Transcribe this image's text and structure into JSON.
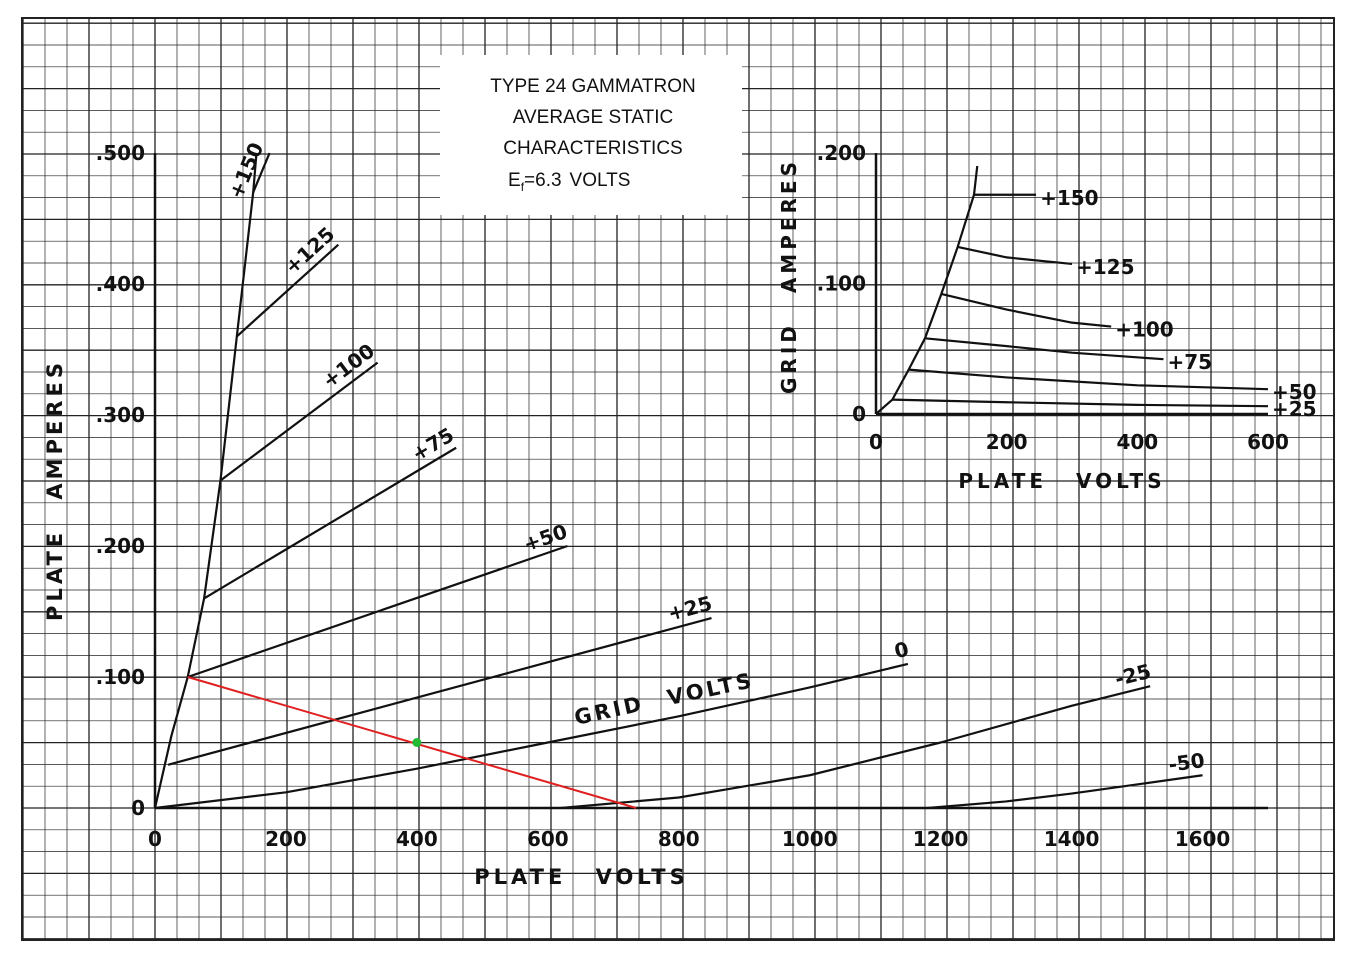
{
  "title": {
    "lines": [
      "TYPE 24 GAMMATRON",
      "AVERAGE STATIC",
      "CHARACTERISTICS",
      "VOLTS"
    ],
    "ef_symbol": "E",
    "ef_subscript": "f",
    "ef_value": "=6.3"
  },
  "colors": {
    "ink": "#111111",
    "grid": "#222222",
    "load_line": "#e02020",
    "operating_point": "#22bb33"
  },
  "chart_data": [
    {
      "type": "line",
      "xlabel": "PLATE VOLTS",
      "ylabel": "PLATE AMPERES",
      "xlim": [
        0,
        1700
      ],
      "ylim": [
        0,
        0.5
      ],
      "x_ticks": [
        0,
        200,
        400,
        600,
        800,
        1000,
        1200,
        1400,
        1600
      ],
      "x_tick_labels": [
        "0",
        "200",
        "400",
        "600",
        "800",
        "1000",
        "1200",
        "1400",
        "1600"
      ],
      "y_ticks": [
        0,
        0.1,
        0.2,
        0.3,
        0.4,
        0.5
      ],
      "y_tick_labels": [
        "0",
        ".100",
        ".200",
        ".300",
        ".400",
        ".500"
      ],
      "grid": true,
      "curve_family_label": "GRID VOLTS",
      "series": [
        {
          "name": "+150",
          "x": [
            150,
            175
          ],
          "y": [
            0.47,
            0.5
          ]
        },
        {
          "name": "+125",
          "x": [
            125,
            280
          ],
          "y": [
            0.36,
            0.43
          ]
        },
        {
          "name": "+100",
          "x": [
            100,
            340
          ],
          "y": [
            0.25,
            0.34
          ]
        },
        {
          "name": "+75",
          "x": [
            75,
            460
          ],
          "y": [
            0.16,
            0.275
          ]
        },
        {
          "name": "+50",
          "x": [
            50,
            630
          ],
          "y": [
            0.1,
            0.2
          ]
        },
        {
          "name": "+25",
          "x": [
            20,
            850
          ],
          "y": [
            0.033,
            0.145
          ]
        },
        {
          "name": "0",
          "x": [
            0,
            200,
            400,
            600,
            800,
            1000,
            1150
          ],
          "y": [
            0,
            0.012,
            0.03,
            0.05,
            0.07,
            0.092,
            0.11
          ]
        },
        {
          "name": "-25",
          "x": [
            620,
            800,
            1000,
            1200,
            1400,
            1520
          ],
          "y": [
            0,
            0.008,
            0.025,
            0.05,
            0.078,
            0.093
          ]
        },
        {
          "name": "-50",
          "x": [
            1180,
            1300,
            1400,
            1500,
            1600
          ],
          "y": [
            0,
            0.005,
            0.011,
            0.018,
            0.025
          ]
        }
      ],
      "envelope": {
        "x": [
          0,
          25,
          50,
          75,
          100,
          125,
          150,
          155
        ],
        "y": [
          0,
          0.055,
          0.1,
          0.16,
          0.25,
          0.36,
          0.47,
          0.5
        ]
      },
      "load_line": {
        "x": [
          50,
          735
        ],
        "y": [
          0.1,
          0.0
        ]
      },
      "operating_point": {
        "x": 400,
        "y": 0.05
      }
    },
    {
      "type": "line",
      "xlabel": "PLATE VOLTS",
      "ylabel": "GRID AMPERES",
      "xlim": [
        0,
        600
      ],
      "ylim": [
        0,
        0.2
      ],
      "x_ticks": [
        0,
        200,
        400,
        600
      ],
      "x_tick_labels": [
        "0",
        "200",
        "400",
        "600"
      ],
      "y_ticks": [
        0,
        0.1,
        0.2
      ],
      "y_tick_labels": [
        "0",
        ".100",
        ".200"
      ],
      "grid": true,
      "series": [
        {
          "name": "+150",
          "x": [
            150,
            245
          ],
          "y": [
            0.168,
            0.168
          ]
        },
        {
          "name": "+125",
          "x": [
            125,
            200,
            300
          ],
          "y": [
            0.128,
            0.12,
            0.115
          ]
        },
        {
          "name": "+100",
          "x": [
            100,
            200,
            300,
            360
          ],
          "y": [
            0.092,
            0.08,
            0.07,
            0.067
          ]
        },
        {
          "name": "+75",
          "x": [
            75,
            200,
            300,
            440
          ],
          "y": [
            0.058,
            0.052,
            0.047,
            0.042
          ]
        },
        {
          "name": "+50",
          "x": [
            50,
            200,
            400,
            600
          ],
          "y": [
            0.034,
            0.028,
            0.022,
            0.019
          ]
        },
        {
          "name": "+25",
          "x": [
            25,
            200,
            400,
            600
          ],
          "y": [
            0.011,
            0.009,
            0.007,
            0.006
          ]
        }
      ],
      "envelope": {
        "x": [
          0,
          25,
          50,
          75,
          100,
          125,
          150,
          155
        ],
        "y": [
          0,
          0.011,
          0.034,
          0.058,
          0.092,
          0.128,
          0.168,
          0.19
        ]
      }
    }
  ]
}
